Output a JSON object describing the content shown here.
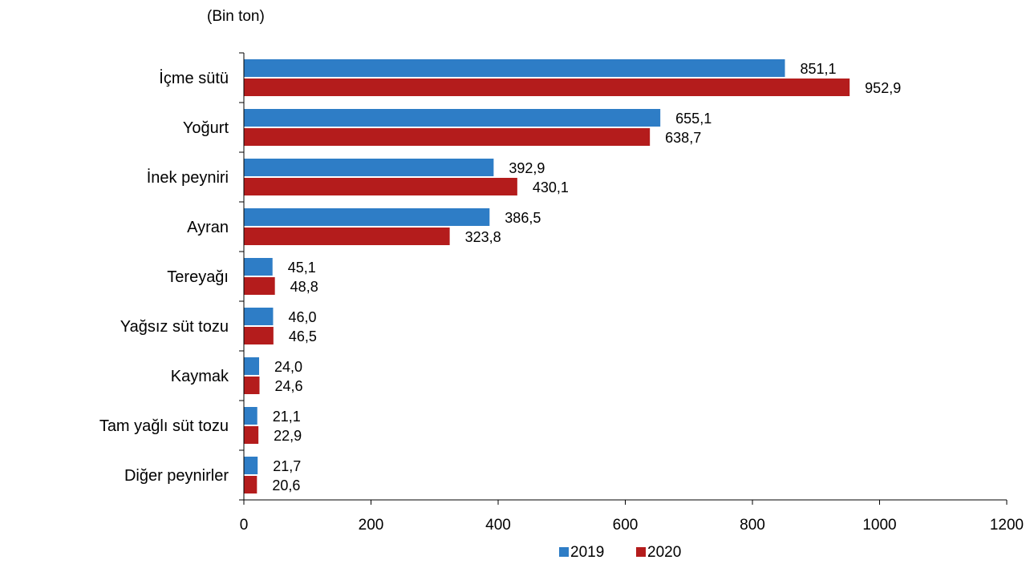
{
  "chart_data": {
    "type": "bar",
    "orientation": "horizontal",
    "unit_label": "(Bin ton)",
    "categories": [
      "İçme sütü",
      "Yoğurt",
      "İnek peyniri",
      "Ayran",
      "Tereyağı",
      "Yağsız süt tozu",
      "Kaymak",
      "Tam yağlı süt tozu",
      "Diğer peynirler"
    ],
    "series": [
      {
        "name": "2019",
        "color": "#2E7DC6",
        "values": [
          851.1,
          655.1,
          392.9,
          386.5,
          45.1,
          46.0,
          24.0,
          21.1,
          21.7
        ],
        "labels": [
          "851,1",
          "655,1",
          "392,9",
          "386,5",
          "45,1",
          "46,0",
          "24,0",
          "21,1",
          "21,7"
        ]
      },
      {
        "name": "2020",
        "color": "#B41C1C",
        "values": [
          952.9,
          638.7,
          430.1,
          323.8,
          48.8,
          46.5,
          24.6,
          22.9,
          20.6
        ],
        "labels": [
          "952,9",
          "638,7",
          "430,1",
          "323,8",
          "48,8",
          "46,5",
          "24,6",
          "22,9",
          "20,6"
        ]
      }
    ],
    "xlim": [
      0,
      1200
    ],
    "xticks": [
      0,
      200,
      400,
      600,
      800,
      1000,
      1200
    ],
    "grid": false,
    "legend_position": "bottom-center"
  }
}
